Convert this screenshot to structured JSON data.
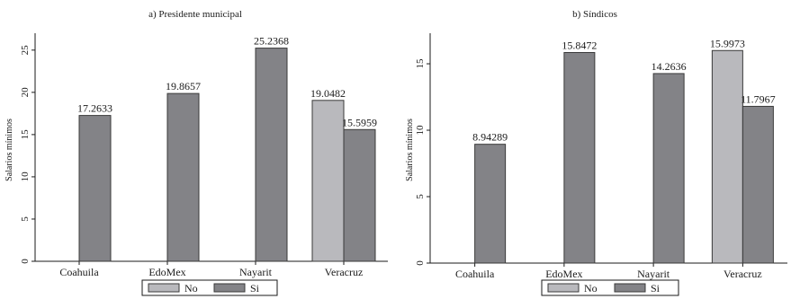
{
  "colors": {
    "no": "#b9b9bd",
    "si": "#838387",
    "bar_stroke": "#3a3a3a",
    "axis": "#1a1a1a",
    "legend_border": "#1a1a1a"
  },
  "chart_data": [
    {
      "type": "bar",
      "title": "a) Presidente municipal",
      "xlabel": "",
      "ylabel": "Salarios mínimos",
      "ylim": [
        0,
        27
      ],
      "yticks": [
        0,
        5,
        10,
        15,
        20,
        25
      ],
      "categories": [
        "Coahuila",
        "EdoMex",
        "Nayarit",
        "Veracruz"
      ],
      "series": [
        {
          "name": "No",
          "values": [
            null,
            null,
            null,
            19.0482
          ],
          "labels": [
            "",
            "",
            "",
            "19.0482"
          ]
        },
        {
          "name": "Si",
          "values": [
            17.2633,
            19.8657,
            25.2368,
            15.5959
          ],
          "labels": [
            "17.2633",
            "19.8657",
            "25.2368",
            "15.5959"
          ]
        }
      ],
      "legend": "bottom",
      "grid": false
    },
    {
      "type": "bar",
      "title": "b) Síndicos",
      "xlabel": "",
      "ylabel": "Salarios mínimos",
      "ylim": [
        0,
        17.3
      ],
      "yticks": [
        0,
        5,
        10,
        15
      ],
      "categories": [
        "Coahuila",
        "EdoMex",
        "Nayarit",
        "Veracruz"
      ],
      "series": [
        {
          "name": "No",
          "values": [
            null,
            null,
            null,
            15.9973
          ],
          "labels": [
            "",
            "",
            "",
            "15.9973"
          ]
        },
        {
          "name": "Si",
          "values": [
            8.94289,
            15.8472,
            14.2636,
            11.7967
          ],
          "labels": [
            "8.94289",
            "15.8472",
            "14.2636",
            "11.7967"
          ]
        }
      ],
      "legend": "bottom",
      "grid": false
    }
  ]
}
